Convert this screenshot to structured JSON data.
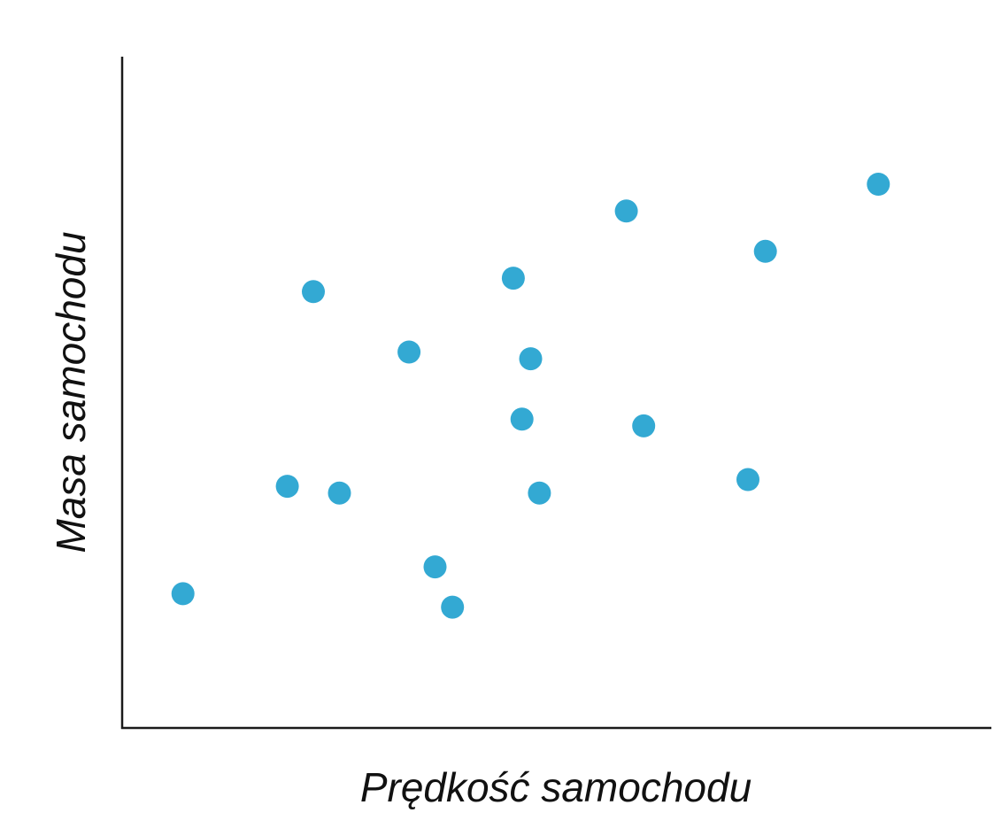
{
  "chart_data": {
    "type": "scatter",
    "title": "",
    "xlabel": "Prędkość samochodu",
    "ylabel": "Masa samochodu",
    "xlim": [
      0,
      100
    ],
    "ylim": [
      0,
      100
    ],
    "grid": false,
    "legend": "none",
    "point_color": "#33a9d3",
    "axis_color": "#1a1a1a",
    "series": [
      {
        "points": [
          {
            "x": 7,
            "y": 20
          },
          {
            "x": 19,
            "y": 36
          },
          {
            "x": 22,
            "y": 65
          },
          {
            "x": 25,
            "y": 35
          },
          {
            "x": 33,
            "y": 56
          },
          {
            "x": 36,
            "y": 24
          },
          {
            "x": 38,
            "y": 18
          },
          {
            "x": 45,
            "y": 67
          },
          {
            "x": 46,
            "y": 46
          },
          {
            "x": 47,
            "y": 55
          },
          {
            "x": 48,
            "y": 35
          },
          {
            "x": 58,
            "y": 77
          },
          {
            "x": 60,
            "y": 45
          },
          {
            "x": 72,
            "y": 37
          },
          {
            "x": 74,
            "y": 71
          },
          {
            "x": 87,
            "y": 81
          }
        ]
      }
    ]
  }
}
